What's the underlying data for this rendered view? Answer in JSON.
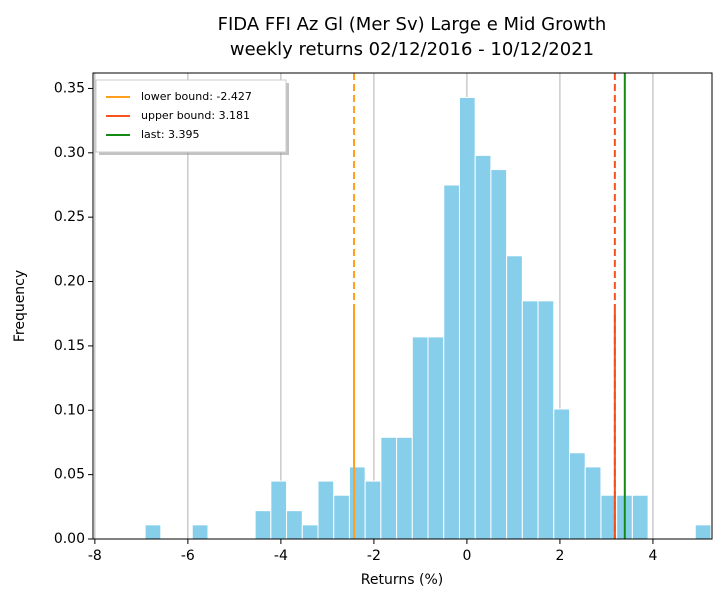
{
  "chart_data": {
    "type": "histogram",
    "title": "FIDA FFI Az Gl (Mer Sv) Large e Mid Growth",
    "subtitle": "weekly returns 02/12/2016 - 10/12/2021",
    "x_label": "Returns (%)",
    "y_label": "Frequency",
    "color": "#87ceeb",
    "bins": [
      -6.92,
      -6.582,
      -6.244,
      -5.906,
      -5.568,
      -5.23,
      -4.892,
      -4.554,
      -4.216,
      -3.878,
      -3.54,
      -3.202,
      -2.864,
      -2.526,
      -2.188,
      -1.85,
      -1.512,
      -1.174,
      -0.836,
      -0.498,
      -0.16,
      0.178,
      0.516,
      0.854,
      1.192,
      1.53,
      1.868,
      2.206,
      2.544,
      2.882,
      3.22,
      3.558,
      3.896,
      4.234,
      4.572,
      4.91,
      5.248
    ],
    "values": [
      0.011,
      0,
      0,
      0.011,
      0,
      0,
      0,
      0.022,
      0.045,
      0.022,
      0.011,
      0.045,
      0.034,
      0.056,
      0.045,
      0.079,
      0.079,
      0.157,
      0.157,
      0.275,
      0.343,
      0.298,
      0.287,
      0.22,
      0.185,
      0.185,
      0.101,
      0.067,
      0.056,
      0.034,
      0.034,
      0.034,
      0,
      0,
      0,
      0.011
    ],
    "xlim": [
      -8.04,
      5.27
    ],
    "ylim": [
      0,
      0.362
    ],
    "xticks": [
      -8,
      -6,
      -4,
      -2,
      0,
      2,
      4
    ],
    "yticks": [
      {
        "value": 0,
        "label": "0.00"
      },
      {
        "value": 0.05,
        "label": "0.05"
      },
      {
        "value": 0.1,
        "label": "0.10"
      },
      {
        "value": 0.15,
        "label": "0.15"
      },
      {
        "value": 0.2,
        "label": "0.20"
      },
      {
        "value": 0.25,
        "label": "0.25"
      },
      {
        "value": 0.3,
        "label": "0.30"
      },
      {
        "value": 0.35,
        "label": "0.35"
      }
    ],
    "grid": "x",
    "legend": "upper left",
    "lines": [
      {
        "name": "lower bound: -2.427",
        "value": -2.427,
        "color": "#ff9f1c"
      },
      {
        "name": "upper bound: 3.181",
        "value": 3.181,
        "color": "#f4511e"
      },
      {
        "name": "last: 3.395",
        "value": 3.395,
        "color": "#138a13"
      }
    ]
  }
}
